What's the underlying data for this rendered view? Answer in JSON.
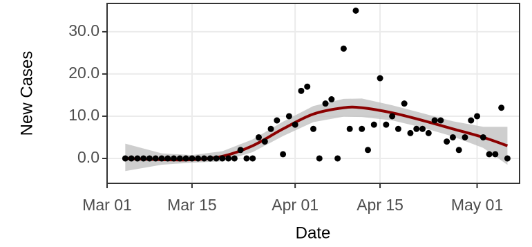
{
  "chart_data": {
    "type": "scatter",
    "x_label": "Date",
    "y_label": "New Cases",
    "x": [
      "Mar 04",
      "Mar 05",
      "Mar 06",
      "Mar 07",
      "Mar 08",
      "Mar 09",
      "Mar 10",
      "Mar 11",
      "Mar 12",
      "Mar 13",
      "Mar 14",
      "Mar 15",
      "Mar 16",
      "Mar 17",
      "Mar 18",
      "Mar 19",
      "Mar 20",
      "Mar 21",
      "Mar 22",
      "Mar 23",
      "Mar 24",
      "Mar 25",
      "Mar 26",
      "Mar 27",
      "Mar 28",
      "Mar 29",
      "Mar 30",
      "Mar 31",
      "Apr 01",
      "Apr 02",
      "Apr 03",
      "Apr 04",
      "Apr 05",
      "Apr 06",
      "Apr 07",
      "Apr 08",
      "Apr 09",
      "Apr 10",
      "Apr 11",
      "Apr 12",
      "Apr 13",
      "Apr 14",
      "Apr 15",
      "Apr 16",
      "Apr 17",
      "Apr 18",
      "Apr 19",
      "Apr 20",
      "Apr 21",
      "Apr 22",
      "Apr 23",
      "Apr 24",
      "Apr 25",
      "Apr 26",
      "Apr 27",
      "Apr 28",
      "Apr 29",
      "Apr 30",
      "May 01",
      "May 02",
      "May 03",
      "May 04",
      "May 05",
      "May 06"
    ],
    "values": [
      0,
      0,
      0,
      0,
      0,
      0,
      0,
      0,
      0,
      0,
      0,
      0,
      0,
      0,
      0,
      0,
      0,
      0,
      0,
      2,
      0,
      0,
      5,
      4,
      7,
      9,
      1,
      10,
      8,
      16,
      17,
      7,
      0,
      13,
      14,
      0,
      26,
      7,
      35,
      7,
      2,
      8,
      19,
      8,
      10,
      7,
      13,
      6,
      7,
      7,
      6,
      9,
      9,
      4,
      5,
      2,
      5,
      9,
      10,
      5,
      1,
      1,
      12,
      0
    ],
    "color": "#000000",
    "smooth": {
      "x": [
        "Mar 04",
        "Mar 10",
        "Mar 15",
        "Mar 20",
        "Mar 25",
        "Mar 30",
        "Apr 04",
        "Apr 09",
        "Apr 12",
        "Apr 17",
        "Apr 22",
        "Apr 27",
        "May 02",
        "May 06"
      ],
      "values": [
        0,
        -0.3,
        -0.3,
        0.5,
        3,
        7,
        10.5,
        12,
        12,
        10.8,
        9,
        7,
        5,
        3
      ],
      "lower": [
        -3,
        -1.5,
        -1,
        -0.7,
        1.5,
        5.3,
        8.6,
        9.9,
        9.8,
        9,
        7.3,
        5.2,
        2.5,
        -1.5
      ],
      "upper": [
        3.5,
        1.2,
        0.8,
        1.7,
        4.5,
        8.7,
        12.4,
        14.1,
        14.2,
        12.6,
        10.7,
        8.8,
        7.5,
        7.5
      ],
      "color": "#8b0000",
      "band_color": "#bdbdbd"
    },
    "xlim": [
      "Mar 01",
      "May 08"
    ],
    "xticks": [
      "Mar 01",
      "Mar 15",
      "Apr 01",
      "Apr 15",
      "May 01"
    ],
    "ylim": [
      -5.9,
      36.7
    ],
    "yticks": [
      {
        "value": 0,
        "label": "0.0"
      },
      {
        "value": 10,
        "label": "10.0"
      },
      {
        "value": 20,
        "label": "20.0"
      },
      {
        "value": 30,
        "label": "30.0"
      }
    ],
    "grid": true
  }
}
